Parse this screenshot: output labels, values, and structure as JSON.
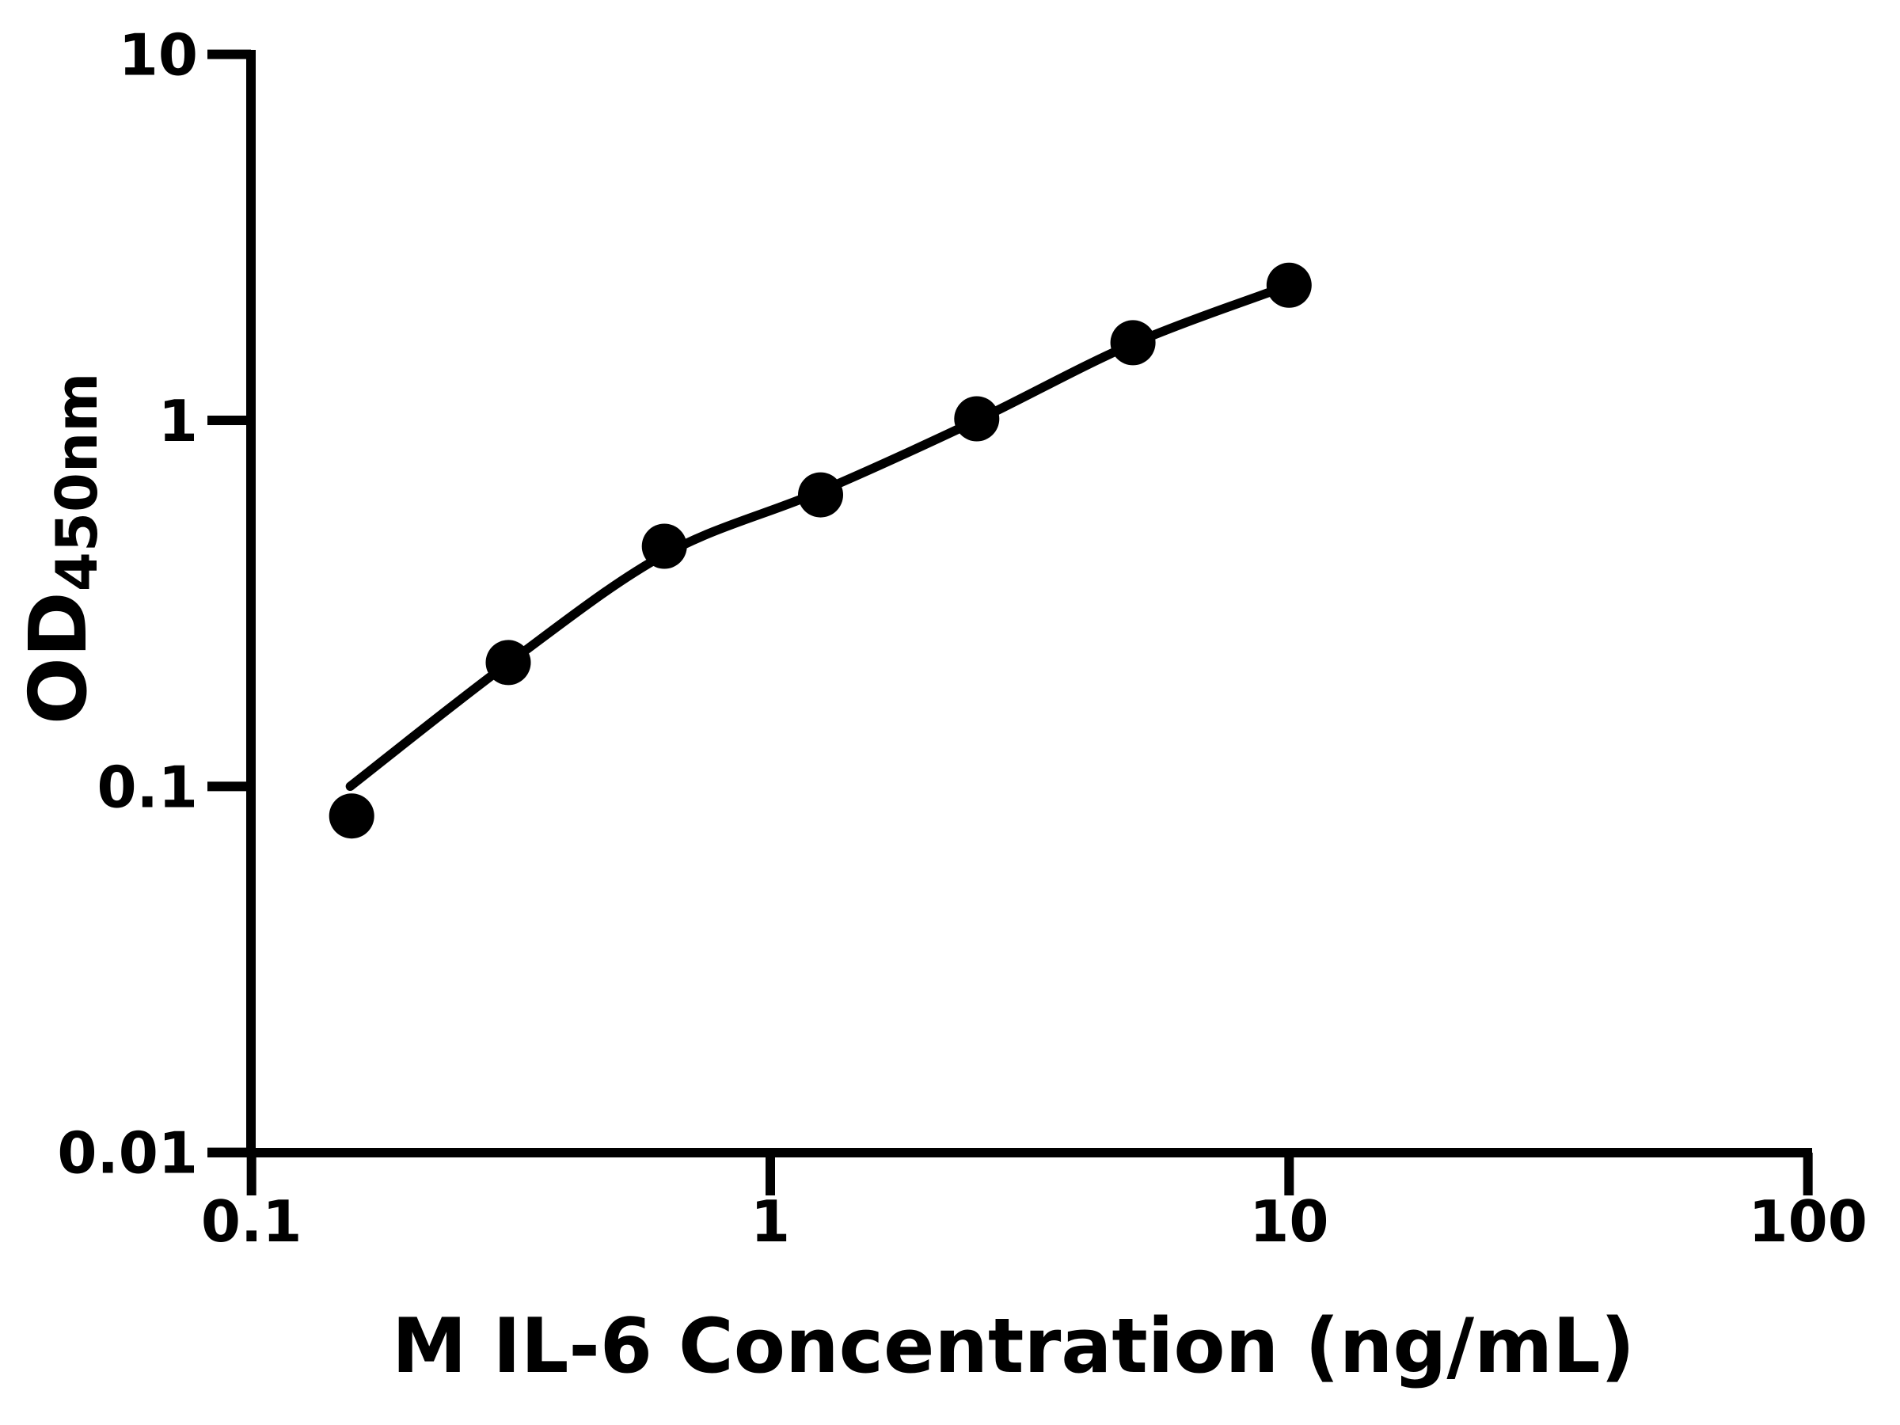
{
  "colors": {
    "foreground": "#000000",
    "background": "#ffffff"
  },
  "chart_data": {
    "type": "scatter",
    "title": "",
    "xlabel": "M IL-6 Concentration (ng/mL)",
    "ylabel_main": "OD",
    "ylabel_sub": "450nm",
    "x_scale": "log",
    "y_scale": "log",
    "xlim": [
      0.1,
      100
    ],
    "ylim": [
      0.01,
      10
    ],
    "grid": false,
    "legend": false,
    "x_ticks": [
      {
        "value": 0.1,
        "label": "0.1"
      },
      {
        "value": 1,
        "label": "1"
      },
      {
        "value": 10,
        "label": "10"
      },
      {
        "value": 100,
        "label": "100"
      }
    ],
    "y_ticks": [
      {
        "value": 10,
        "label": "10"
      },
      {
        "value": 1,
        "label": "1"
      },
      {
        "value": 0.1,
        "label": "0.1"
      },
      {
        "value": 0.01,
        "label": "0.01"
      }
    ],
    "points": [
      {
        "x": 0.156,
        "y": 0.083
      },
      {
        "x": 0.3125,
        "y": 0.218
      },
      {
        "x": 0.625,
        "y": 0.453
      },
      {
        "x": 1.25,
        "y": 0.626
      },
      {
        "x": 2.5,
        "y": 1.01
      },
      {
        "x": 5,
        "y": 1.63
      },
      {
        "x": 10,
        "y": 2.34
      }
    ],
    "fit_curve": [
      {
        "x": 0.155,
        "y": 0.1
      },
      {
        "x": 0.3125,
        "y": 0.217
      },
      {
        "x": 0.625,
        "y": 0.43
      },
      {
        "x": 1.25,
        "y": 0.64
      },
      {
        "x": 2.5,
        "y": 1.0
      },
      {
        "x": 5,
        "y": 1.62
      },
      {
        "x": 10,
        "y": 2.34
      }
    ],
    "marker": {
      "shape": "circle",
      "color": "#000000",
      "radius_px": 28.5
    }
  }
}
